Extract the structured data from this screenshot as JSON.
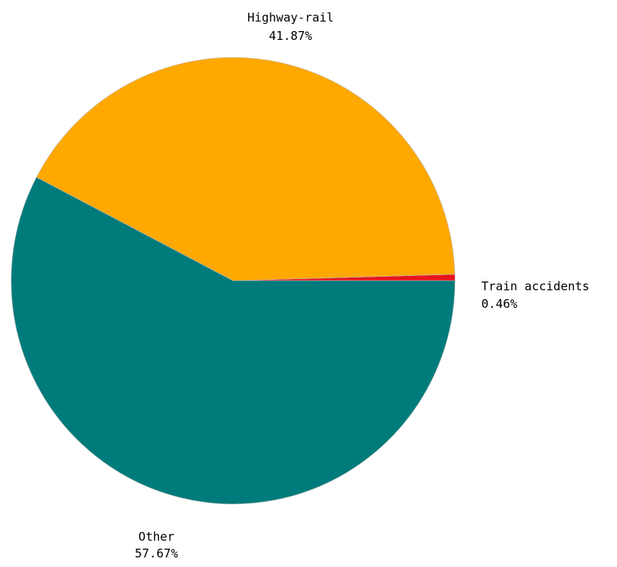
{
  "chart_data": {
    "type": "pie",
    "title": "",
    "start_angle_deg": 0,
    "direction": "counterclockwise",
    "slices": [
      {
        "label": "Train accidents",
        "value": 0.46,
        "value_text": "0.46%",
        "color": "#e8141c"
      },
      {
        "label": "Highway-rail",
        "value": 41.87,
        "value_text": "41.87%",
        "color": "#ffa800"
      },
      {
        "label": "Other",
        "value": 57.67,
        "value_text": "57.67%",
        "color": "#007b7b"
      }
    ]
  }
}
